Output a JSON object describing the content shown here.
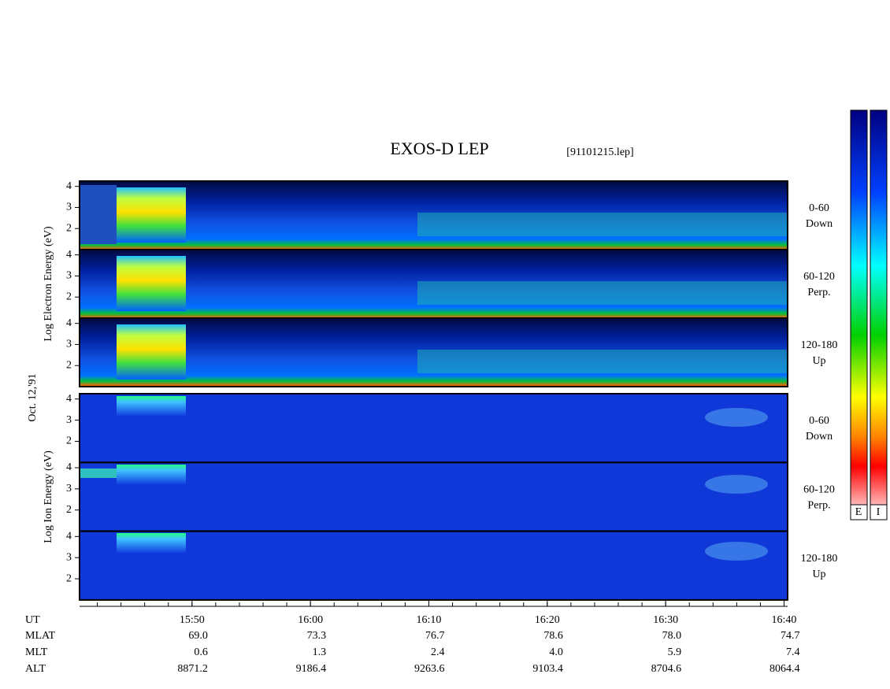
{
  "title": "EXOS-D LEP",
  "file": "[91101215.lep]",
  "date_label": "Oct. 12,'91",
  "ylim": [
    1,
    4.25
  ],
  "yticks": [
    2,
    3,
    4
  ],
  "panels": [
    {
      "axis_label": "Log Electron Energy (eV)",
      "subpanels": [
        {
          "pitch": "0-60",
          "direction": "Down"
        },
        {
          "pitch": "60-120",
          "direction": "Perp."
        },
        {
          "pitch": "120-180",
          "direction": "Up"
        }
      ]
    },
    {
      "axis_label": "Log Ion Energy (eV)",
      "subpanels": [
        {
          "pitch": "0-60",
          "direction": "Down"
        },
        {
          "pitch": "60-120",
          "direction": "Perp."
        },
        {
          "pitch": "120-180",
          "direction": "Up"
        }
      ]
    }
  ],
  "xlim": [
    940.5,
    1000.3
  ],
  "xminor": 2,
  "xticks": [
    {
      "value": 950,
      "label": "15:50"
    },
    {
      "value": 960,
      "label": "16:00"
    },
    {
      "value": 970,
      "label": "16:10"
    },
    {
      "value": 980,
      "label": "16:20"
    },
    {
      "value": 990,
      "label": "16:30"
    },
    {
      "value": 1000,
      "label": "16:40"
    }
  ],
  "ephemeris": {
    "row_labels": [
      "UT",
      "MLAT",
      "MLT",
      "ALT"
    ],
    "rows": [
      [
        "69.0",
        "73.3",
        "76.7",
        "78.6",
        "78.0",
        "74.7"
      ],
      [
        "0.6",
        "1.3",
        "2.4",
        "4.0",
        "5.9",
        "7.4"
      ],
      [
        "8871.2",
        "9186.4",
        "9263.6",
        "9103.4",
        "8704.6",
        "8064.4"
      ]
    ]
  },
  "colorbar_labels": [
    "E",
    "I"
  ]
}
